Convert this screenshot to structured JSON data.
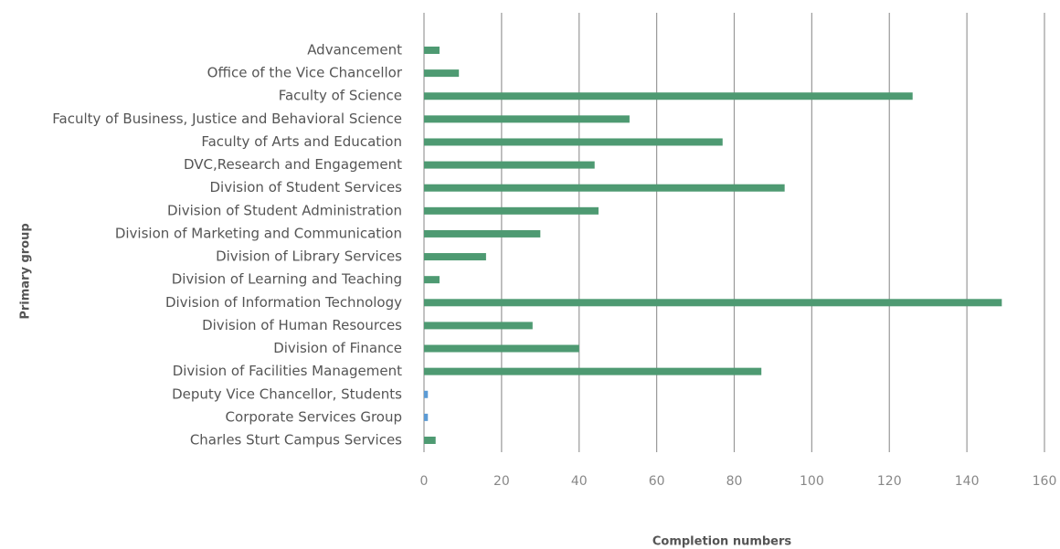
{
  "chart_data": {
    "type": "hbar",
    "xlabel": "Completion numbers",
    "ylabel": "Primary group",
    "categories": [
      "Advancement",
      "Office of the Vice Chancellor",
      "Faculty of Science",
      "Faculty of Business, Justice and Behavioral Science",
      "Faculty of Arts and Education",
      "DVC,Research and Engagement",
      "Division of Student Services",
      "Division of Student Administration",
      "Division of Marketing and Communication",
      "Division of Library Services",
      "Division of Learning and Teaching",
      "Division of Information Technology",
      "Division of Human Resources",
      "Division of Finance",
      "Division of Facilities Management",
      "Deputy Vice Chancellor, Students",
      "Corporate Services Group",
      "Charles Sturt Campus Services"
    ],
    "values": [
      4,
      9,
      126,
      53,
      77,
      44,
      93,
      45,
      30,
      16,
      4,
      149,
      28,
      40,
      87,
      1,
      1,
      3
    ],
    "colors": [
      "#4e9a72",
      "#4e9a72",
      "#4e9a72",
      "#4e9a72",
      "#4e9a72",
      "#4e9a72",
      "#4e9a72",
      "#4e9a72",
      "#4e9a72",
      "#4e9a72",
      "#4e9a72",
      "#4e9a72",
      "#4e9a72",
      "#4e9a72",
      "#4e9a72",
      "#5b9bd5",
      "#5b9bd5",
      "#4e9a72"
    ],
    "xlim": [
      0,
      160
    ],
    "xticks": [
      0,
      20,
      40,
      60,
      80,
      100,
      120,
      140,
      160
    ],
    "grid": true
  }
}
